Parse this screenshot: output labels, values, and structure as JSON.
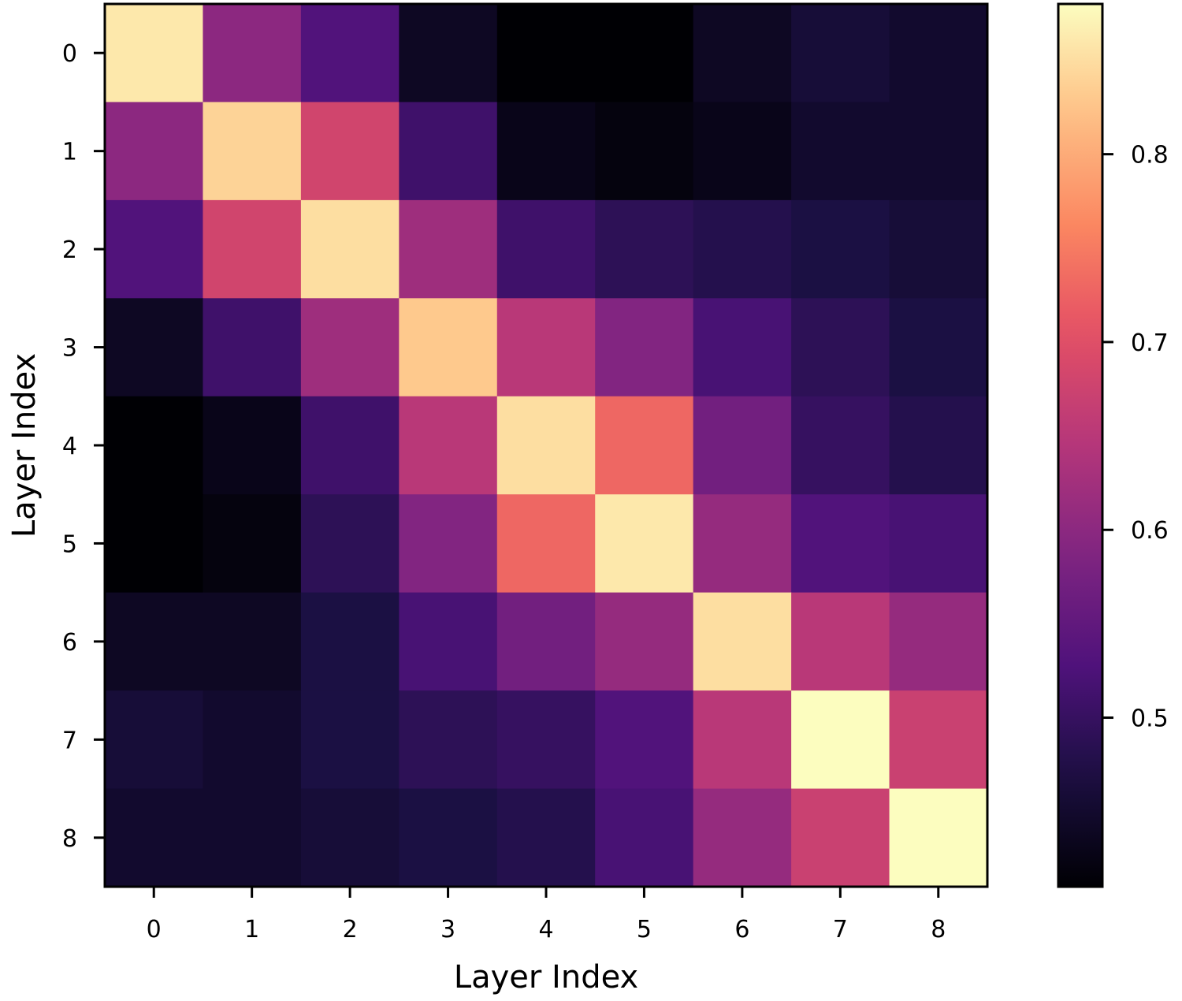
{
  "chart_data": {
    "type": "heatmap",
    "xlabel": "Layer Index",
    "ylabel": "Layer Index",
    "x_tick_labels": [
      "0",
      "1",
      "2",
      "3",
      "4",
      "5",
      "6",
      "7",
      "8"
    ],
    "y_tick_labels": [
      "0",
      "1",
      "2",
      "3",
      "4",
      "5",
      "6",
      "7",
      "8"
    ],
    "colormap": "magma",
    "color_range": [
      0.41,
      0.88
    ],
    "colorbar_ticks": [
      0.5,
      0.6,
      0.7,
      0.8
    ],
    "colorbar_tick_labels": [
      "0.5",
      "0.6",
      "0.7",
      "0.8"
    ],
    "values": [
      [
        0.86,
        0.6,
        0.53,
        0.44,
        0.41,
        0.41,
        0.44,
        0.46,
        0.45
      ],
      [
        0.6,
        0.84,
        0.68,
        0.51,
        0.43,
        0.42,
        0.43,
        0.45,
        0.45
      ],
      [
        0.53,
        0.68,
        0.85,
        0.62,
        0.51,
        0.49,
        0.48,
        0.47,
        0.46
      ],
      [
        0.44,
        0.51,
        0.62,
        0.83,
        0.65,
        0.59,
        0.52,
        0.49,
        0.47
      ],
      [
        0.41,
        0.43,
        0.51,
        0.65,
        0.85,
        0.73,
        0.57,
        0.5,
        0.48
      ],
      [
        0.41,
        0.42,
        0.49,
        0.59,
        0.73,
        0.86,
        0.61,
        0.53,
        0.52
      ],
      [
        0.44,
        0.44,
        0.47,
        0.52,
        0.57,
        0.61,
        0.85,
        0.65,
        0.61
      ],
      [
        0.46,
        0.45,
        0.47,
        0.49,
        0.5,
        0.53,
        0.65,
        0.88,
        0.67
      ],
      [
        0.45,
        0.45,
        0.46,
        0.47,
        0.48,
        0.52,
        0.61,
        0.67,
        0.88
      ]
    ]
  }
}
